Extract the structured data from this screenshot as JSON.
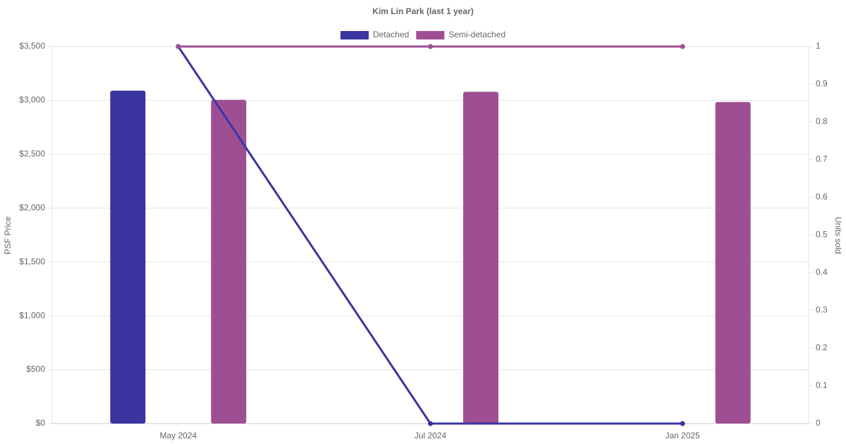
{
  "chart_data": {
    "type": "bar-line",
    "title": "Kim Lin Park (last 1 year)",
    "y_label": "PSF Price",
    "y2_label": "Units sold",
    "categories": [
      "May 2024",
      "Jul 2024",
      "Jan 2025"
    ],
    "series": [
      {
        "name": "Detached",
        "color": "#3a35a0",
        "values": [
          3090,
          null,
          null
        ],
        "units": [
          1,
          0,
          0
        ]
      },
      {
        "name": "Semi-detached",
        "color": "#9e4f93",
        "values": [
          3005,
          3080,
          2985
        ],
        "units": [
          1,
          1,
          1
        ]
      }
    ],
    "ylim": [
      0,
      3500
    ],
    "yticks": [
      {
        "value": 0,
        "label": "$0"
      },
      {
        "value": 500,
        "label": "$500"
      },
      {
        "value": 1000,
        "label": "$1,000"
      },
      {
        "value": 1500,
        "label": "$1,500"
      },
      {
        "value": 2000,
        "label": "$2,000"
      },
      {
        "value": 2500,
        "label": "$2,500"
      },
      {
        "value": 3000,
        "label": "$3,000"
      },
      {
        "value": 3500,
        "label": "$3,500"
      }
    ],
    "y2lim": [
      0,
      1
    ],
    "y2ticks": [
      0,
      0.1,
      0.2,
      0.3,
      0.4,
      0.5,
      0.6,
      0.7,
      0.8,
      0.9,
      1
    ],
    "grid": true
  }
}
